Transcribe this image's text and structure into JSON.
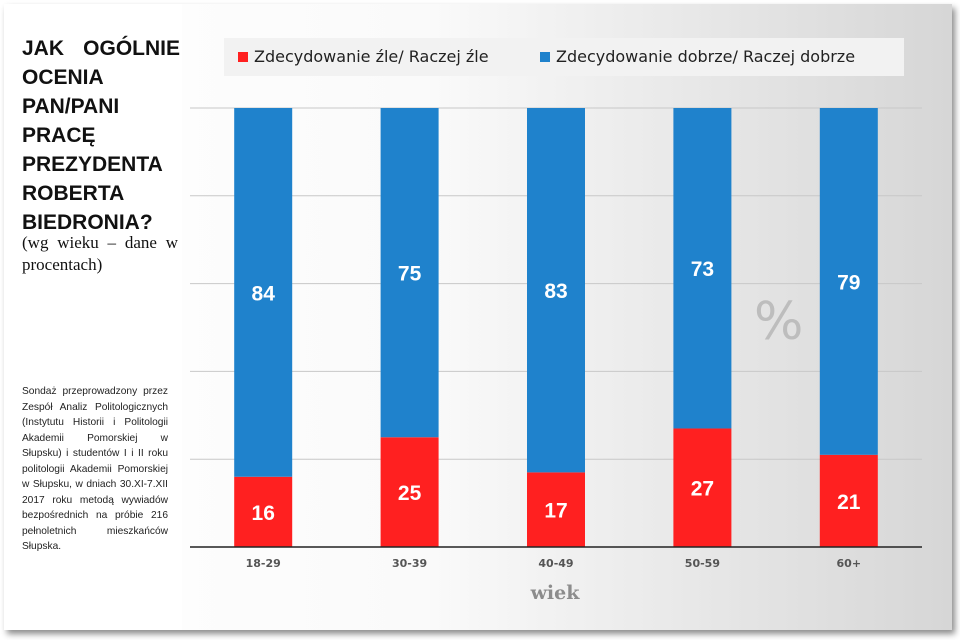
{
  "title": "JAK OGÓLNIE OCENIA PAN/PANI PRACĘ PREZYDENTA ROBERTA BIEDRONIA?",
  "subtitle": "(wg wieku – dane w procentach)",
  "note": "Sondaż przeprowadzony przez Zespół Analiz Politologicznych (Instytutu Historii i Politologii Akademii Pomorskiej w Słupsku) i studentów I i II roku politologii Akademii Pomorskiej w Słupsku, w dniach 30.XI-7.XII 2017 roku metodą wywiadów bezpośrednich na próbie 216 pełnoletnich mieszkańców Słupska.",
  "percent_mark": "%",
  "colors": {
    "bad": "#ff2020",
    "good": "#1f82cc",
    "grid": "#c8c8c8",
    "axis": "#222222"
  },
  "chart_data": {
    "type": "bar",
    "stacked": true,
    "categories": [
      "18-29",
      "30-39",
      "40-49",
      "50-59",
      "60+"
    ],
    "series": [
      {
        "name": "Zdecydowanie źle/ Raczej źle",
        "values": [
          16,
          25,
          17,
          27,
          21
        ]
      },
      {
        "name": "Zdecydowanie dobrze/ Raczej dobrze",
        "values": [
          84,
          75,
          83,
          73,
          79
        ]
      }
    ],
    "xlabel": "wiek",
    "ylabel": "",
    "ylim": [
      0,
      100
    ],
    "grid": true,
    "legend": "top"
  }
}
